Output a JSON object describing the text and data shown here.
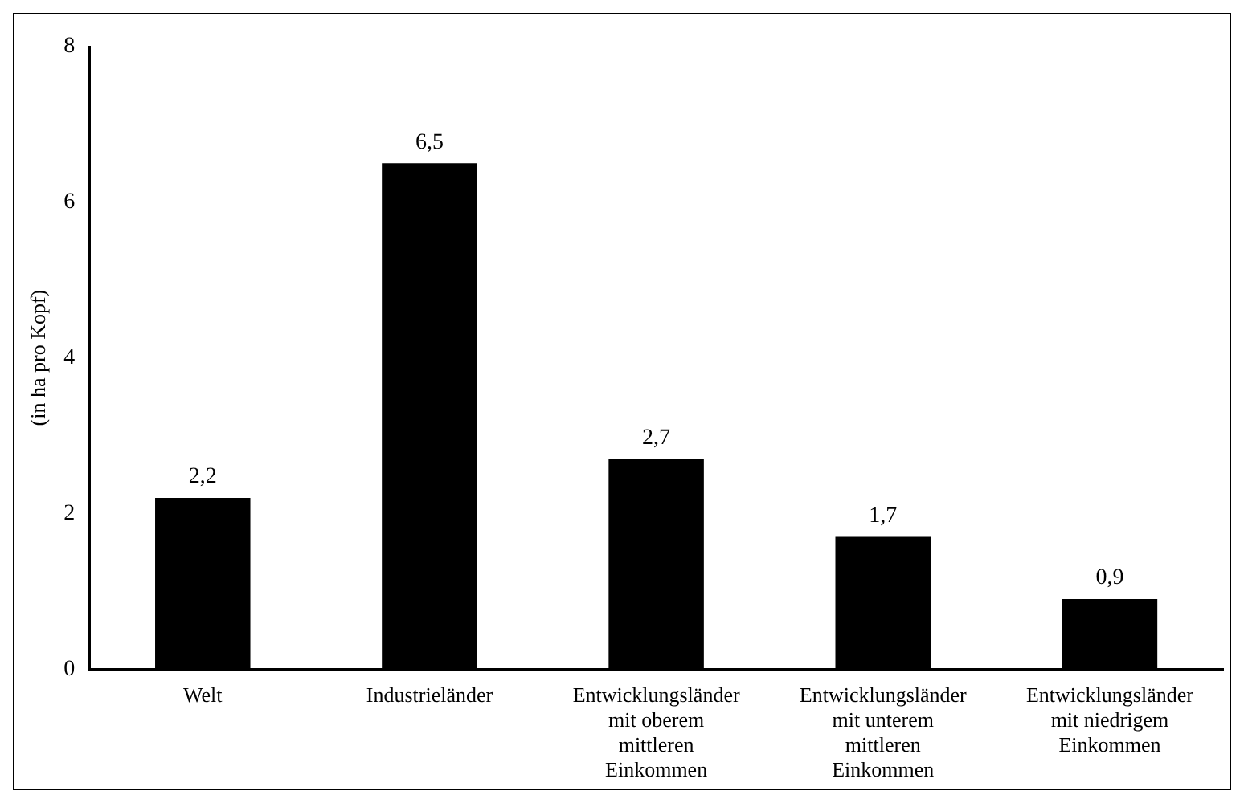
{
  "chart_data": {
    "type": "bar",
    "ylabel": "(in ha pro Kopf)",
    "categories": [
      "Welt",
      "Industrieländer",
      "Entwicklungsländer mit oberem mittleren Einkommen",
      "Entwicklungsländer mit unterem mittleren Einkommen",
      "Entwicklungsländer mit niedrigem Einkommen"
    ],
    "values": [
      2.2,
      6.5,
      2.7,
      1.7,
      0.9
    ],
    "value_labels": [
      "2,2",
      "6,5",
      "2,7",
      "1,7",
      "0,9"
    ],
    "color": "#000000",
    "ylim": [
      0,
      8
    ],
    "yticks": [
      0,
      2,
      4,
      6,
      8
    ],
    "grid": false,
    "legend": false
  }
}
